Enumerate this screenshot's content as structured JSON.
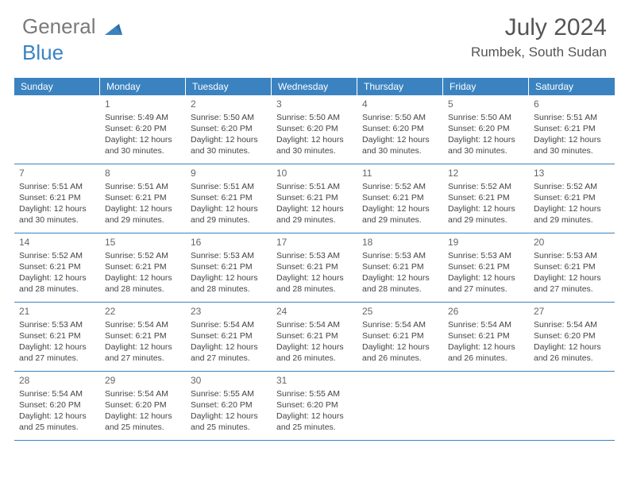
{
  "logo": {
    "word1": "General",
    "word2": "Blue"
  },
  "title": "July 2024",
  "location": "Rumbek, South Sudan",
  "colors": {
    "header_bg": "#3b83c0",
    "header_text": "#ffffff",
    "text": "#444444",
    "logo_gray": "#7a7a7a",
    "logo_blue": "#3b83c0",
    "border": "#3b83c0",
    "background": "#ffffff"
  },
  "dow": [
    "Sunday",
    "Monday",
    "Tuesday",
    "Wednesday",
    "Thursday",
    "Friday",
    "Saturday"
  ],
  "weeks": [
    [
      {
        "day": "",
        "sunrise": "",
        "sunset": "",
        "daylight": ""
      },
      {
        "day": "1",
        "sunrise": "Sunrise: 5:49 AM",
        "sunset": "Sunset: 6:20 PM",
        "daylight": "Daylight: 12 hours and 30 minutes."
      },
      {
        "day": "2",
        "sunrise": "Sunrise: 5:50 AM",
        "sunset": "Sunset: 6:20 PM",
        "daylight": "Daylight: 12 hours and 30 minutes."
      },
      {
        "day": "3",
        "sunrise": "Sunrise: 5:50 AM",
        "sunset": "Sunset: 6:20 PM",
        "daylight": "Daylight: 12 hours and 30 minutes."
      },
      {
        "day": "4",
        "sunrise": "Sunrise: 5:50 AM",
        "sunset": "Sunset: 6:20 PM",
        "daylight": "Daylight: 12 hours and 30 minutes."
      },
      {
        "day": "5",
        "sunrise": "Sunrise: 5:50 AM",
        "sunset": "Sunset: 6:20 PM",
        "daylight": "Daylight: 12 hours and 30 minutes."
      },
      {
        "day": "6",
        "sunrise": "Sunrise: 5:51 AM",
        "sunset": "Sunset: 6:21 PM",
        "daylight": "Daylight: 12 hours and 30 minutes."
      }
    ],
    [
      {
        "day": "7",
        "sunrise": "Sunrise: 5:51 AM",
        "sunset": "Sunset: 6:21 PM",
        "daylight": "Daylight: 12 hours and 30 minutes."
      },
      {
        "day": "8",
        "sunrise": "Sunrise: 5:51 AM",
        "sunset": "Sunset: 6:21 PM",
        "daylight": "Daylight: 12 hours and 29 minutes."
      },
      {
        "day": "9",
        "sunrise": "Sunrise: 5:51 AM",
        "sunset": "Sunset: 6:21 PM",
        "daylight": "Daylight: 12 hours and 29 minutes."
      },
      {
        "day": "10",
        "sunrise": "Sunrise: 5:51 AM",
        "sunset": "Sunset: 6:21 PM",
        "daylight": "Daylight: 12 hours and 29 minutes."
      },
      {
        "day": "11",
        "sunrise": "Sunrise: 5:52 AM",
        "sunset": "Sunset: 6:21 PM",
        "daylight": "Daylight: 12 hours and 29 minutes."
      },
      {
        "day": "12",
        "sunrise": "Sunrise: 5:52 AM",
        "sunset": "Sunset: 6:21 PM",
        "daylight": "Daylight: 12 hours and 29 minutes."
      },
      {
        "day": "13",
        "sunrise": "Sunrise: 5:52 AM",
        "sunset": "Sunset: 6:21 PM",
        "daylight": "Daylight: 12 hours and 29 minutes."
      }
    ],
    [
      {
        "day": "14",
        "sunrise": "Sunrise: 5:52 AM",
        "sunset": "Sunset: 6:21 PM",
        "daylight": "Daylight: 12 hours and 28 minutes."
      },
      {
        "day": "15",
        "sunrise": "Sunrise: 5:52 AM",
        "sunset": "Sunset: 6:21 PM",
        "daylight": "Daylight: 12 hours and 28 minutes."
      },
      {
        "day": "16",
        "sunrise": "Sunrise: 5:53 AM",
        "sunset": "Sunset: 6:21 PM",
        "daylight": "Daylight: 12 hours and 28 minutes."
      },
      {
        "day": "17",
        "sunrise": "Sunrise: 5:53 AM",
        "sunset": "Sunset: 6:21 PM",
        "daylight": "Daylight: 12 hours and 28 minutes."
      },
      {
        "day": "18",
        "sunrise": "Sunrise: 5:53 AM",
        "sunset": "Sunset: 6:21 PM",
        "daylight": "Daylight: 12 hours and 28 minutes."
      },
      {
        "day": "19",
        "sunrise": "Sunrise: 5:53 AM",
        "sunset": "Sunset: 6:21 PM",
        "daylight": "Daylight: 12 hours and 27 minutes."
      },
      {
        "day": "20",
        "sunrise": "Sunrise: 5:53 AM",
        "sunset": "Sunset: 6:21 PM",
        "daylight": "Daylight: 12 hours and 27 minutes."
      }
    ],
    [
      {
        "day": "21",
        "sunrise": "Sunrise: 5:53 AM",
        "sunset": "Sunset: 6:21 PM",
        "daylight": "Daylight: 12 hours and 27 minutes."
      },
      {
        "day": "22",
        "sunrise": "Sunrise: 5:54 AM",
        "sunset": "Sunset: 6:21 PM",
        "daylight": "Daylight: 12 hours and 27 minutes."
      },
      {
        "day": "23",
        "sunrise": "Sunrise: 5:54 AM",
        "sunset": "Sunset: 6:21 PM",
        "daylight": "Daylight: 12 hours and 27 minutes."
      },
      {
        "day": "24",
        "sunrise": "Sunrise: 5:54 AM",
        "sunset": "Sunset: 6:21 PM",
        "daylight": "Daylight: 12 hours and 26 minutes."
      },
      {
        "day": "25",
        "sunrise": "Sunrise: 5:54 AM",
        "sunset": "Sunset: 6:21 PM",
        "daylight": "Daylight: 12 hours and 26 minutes."
      },
      {
        "day": "26",
        "sunrise": "Sunrise: 5:54 AM",
        "sunset": "Sunset: 6:21 PM",
        "daylight": "Daylight: 12 hours and 26 minutes."
      },
      {
        "day": "27",
        "sunrise": "Sunrise: 5:54 AM",
        "sunset": "Sunset: 6:20 PM",
        "daylight": "Daylight: 12 hours and 26 minutes."
      }
    ],
    [
      {
        "day": "28",
        "sunrise": "Sunrise: 5:54 AM",
        "sunset": "Sunset: 6:20 PM",
        "daylight": "Daylight: 12 hours and 25 minutes."
      },
      {
        "day": "29",
        "sunrise": "Sunrise: 5:54 AM",
        "sunset": "Sunset: 6:20 PM",
        "daylight": "Daylight: 12 hours and 25 minutes."
      },
      {
        "day": "30",
        "sunrise": "Sunrise: 5:55 AM",
        "sunset": "Sunset: 6:20 PM",
        "daylight": "Daylight: 12 hours and 25 minutes."
      },
      {
        "day": "31",
        "sunrise": "Sunrise: 5:55 AM",
        "sunset": "Sunset: 6:20 PM",
        "daylight": "Daylight: 12 hours and 25 minutes."
      },
      {
        "day": "",
        "sunrise": "",
        "sunset": "",
        "daylight": ""
      },
      {
        "day": "",
        "sunrise": "",
        "sunset": "",
        "daylight": ""
      },
      {
        "day": "",
        "sunrise": "",
        "sunset": "",
        "daylight": ""
      }
    ]
  ]
}
